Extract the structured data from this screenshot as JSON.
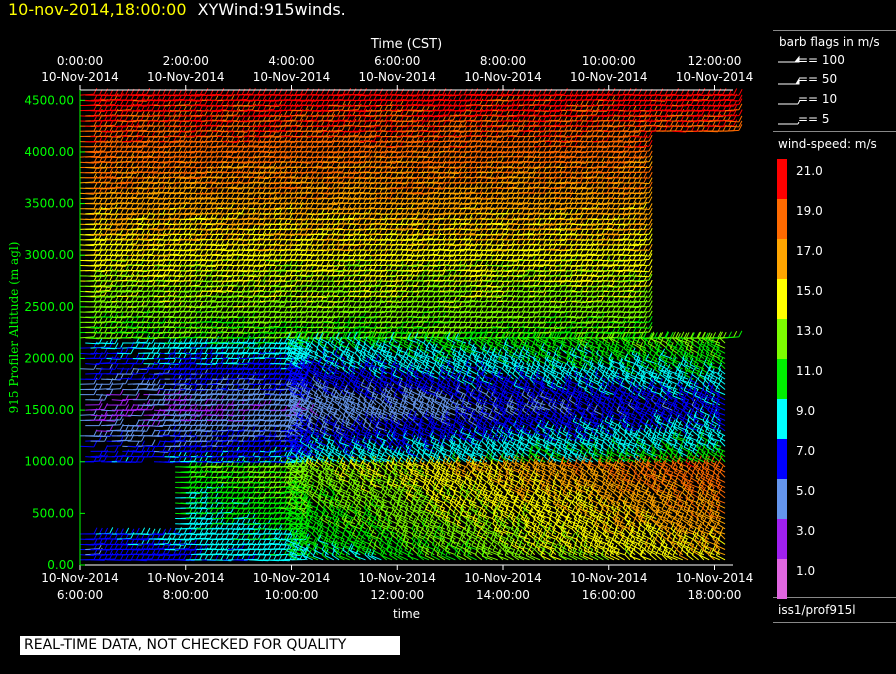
{
  "header": {
    "datetime": "10-nov-2014,18:00:00",
    "product": "XYWind:915winds."
  },
  "chart_data": {
    "type": "wind-barb time-height",
    "top_axis_title": "Time (CST)",
    "top_ticks": [
      {
        "t": 0,
        "time": "0:00:00",
        "date": "10-Nov-2014"
      },
      {
        "t": 2,
        "time": "2:00:00",
        "date": "10-Nov-2014"
      },
      {
        "t": 4,
        "time": "4:00:00",
        "date": "10-Nov-2014"
      },
      {
        "t": 6,
        "time": "6:00:00",
        "date": "10-Nov-2014"
      },
      {
        "t": 8,
        "time": "8:00:00",
        "date": "10-Nov-2014"
      },
      {
        "t": 10,
        "time": "10:00:00",
        "date": "10-Nov-2014"
      },
      {
        "t": 12,
        "time": "12:00:00",
        "date": "10-Nov-2014"
      }
    ],
    "bottom_axis_title": "time",
    "bottom_ticks": [
      {
        "t": 0,
        "date": "10-Nov-2014",
        "time": "6:00:00"
      },
      {
        "t": 2,
        "date": "10-Nov-2014",
        "time": "8:00:00"
      },
      {
        "t": 4,
        "date": "10-Nov-2014",
        "time": "10:00:00"
      },
      {
        "t": 6,
        "date": "10-Nov-2014",
        "time": "12:00:00"
      },
      {
        "t": 8,
        "date": "10-Nov-2014",
        "time": "14:00:00"
      },
      {
        "t": 10,
        "date": "10-Nov-2014",
        "time": "16:00:00"
      },
      {
        "t": 12,
        "date": "10-Nov-2014",
        "time": "18:00:00"
      }
    ],
    "y_axis_title": "915 Profiler Altitude (m agl)",
    "y_ticks": [
      "0.00",
      "500.00",
      "1000.00",
      "1500.00",
      "2000.00",
      "2500.00",
      "3000.00",
      "3500.00",
      "4000.00",
      "4500.00"
    ],
    "y_range": [
      0,
      4600
    ],
    "x_range_hours": [
      0,
      12.35
    ],
    "time_step_hours": 0.1,
    "level_step_m": 50,
    "profile_top_m": 4550,
    "barb_flags": {
      "title": "barb flags in m/s",
      "items": [
        "== 100",
        "== 50",
        "== 10",
        "== 5"
      ]
    },
    "colorbar": {
      "title": "wind-speed: m/s",
      "bins": [
        {
          "label": "1.0",
          "color": "#e066e0"
        },
        {
          "label": "3.0",
          "color": "#a020f0"
        },
        {
          "label": "5.0",
          "color": "#6495ed"
        },
        {
          "label": "7.0",
          "color": "#0000ff"
        },
        {
          "label": "9.0",
          "color": "#00ffff"
        },
        {
          "label": "11.0",
          "color": "#00ee00"
        },
        {
          "label": "13.0",
          "color": "#7cfc00"
        },
        {
          "label": "15.0",
          "color": "#ffff00"
        },
        {
          "label": "17.0",
          "color": "#ffa500"
        },
        {
          "label": "19.0",
          "color": "#ff6a00"
        },
        {
          "label": "21.0",
          "color": "#ff0000"
        }
      ]
    }
  },
  "source_label": "iss1/prof915l",
  "notice": "REAL-TIME DATA, NOT CHECKED FOR QUALITY"
}
